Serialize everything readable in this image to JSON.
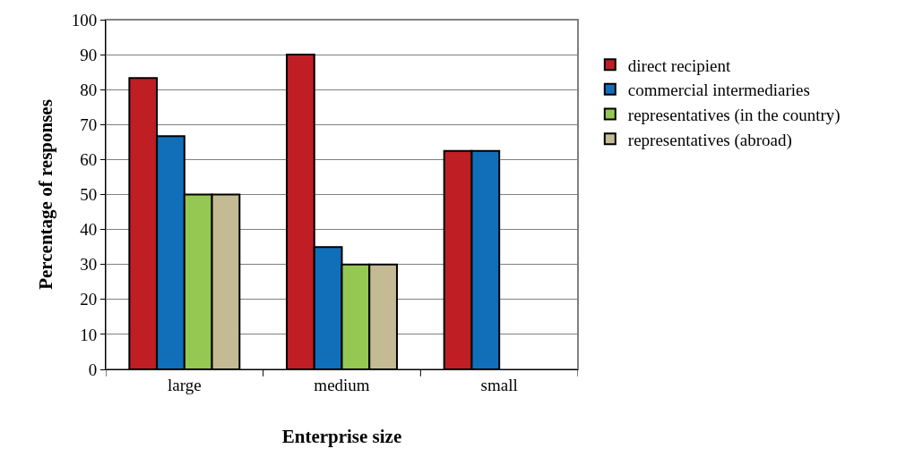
{
  "chart_data": {
    "type": "bar",
    "xlabel": "Enterprise size",
    "ylabel": "Percentage of responses",
    "categories": [
      "large",
      "medium",
      "small"
    ],
    "series": [
      {
        "name": "direct recipient",
        "color": "#be1e24",
        "values": [
          83.3,
          90,
          62.5
        ]
      },
      {
        "name": "commercial intermediaries",
        "color": "#116fba",
        "values": [
          66.7,
          35,
          62.5
        ]
      },
      {
        "name": "representatives (in the country)",
        "color": "#95c852",
        "values": [
          50,
          30,
          null
        ]
      },
      {
        "name": "representatives (abroad)",
        "color": "#c4bb94",
        "values": [
          50,
          30,
          null
        ]
      }
    ],
    "ylim": [
      0,
      100
    ],
    "yticks": [
      0,
      10,
      20,
      30,
      40,
      50,
      60,
      70,
      80,
      90,
      100
    ],
    "grid": "y",
    "legend": "right"
  }
}
